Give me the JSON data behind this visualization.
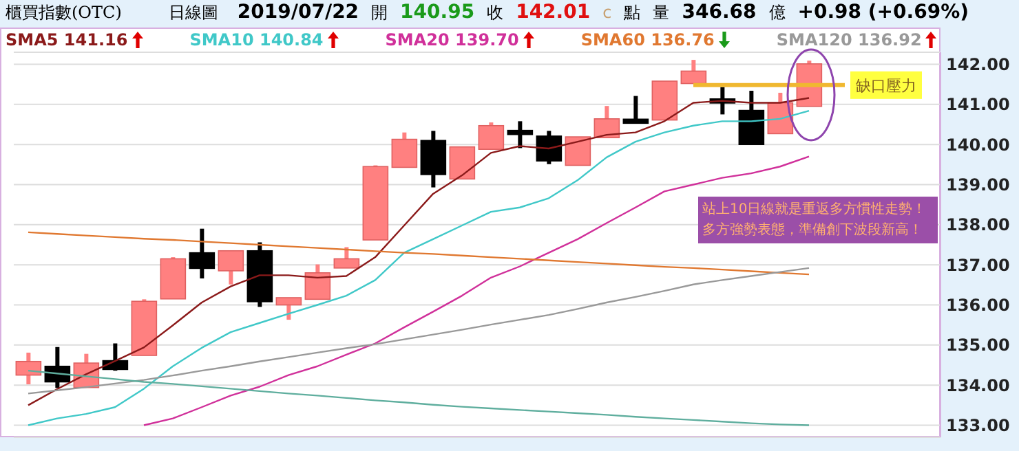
{
  "chart_data": {
    "type": "candlestick",
    "title": "櫃買指數(OTC)",
    "subtitle": "日線圖",
    "annotations": [
      "2019/07/22",
      "開",
      "140.95",
      "收",
      "142.01",
      "c",
      "點",
      "量",
      "346.68",
      "億",
      "+0.98 (+0.69%)",
      "站上10日線就是重返多方慣性走勢！",
      "多方強勢表態，準備創下波段新高！"
    ],
    "categories": [
      null,
      null,
      null,
      null,
      null,
      null,
      null,
      null,
      null,
      null,
      null,
      null,
      null,
      null,
      null,
      null,
      null,
      null,
      null,
      null,
      null,
      null,
      null,
      null,
      null,
      null,
      null,
      null
    ],
    "ohlc": [
      [
        134.25,
        134.81,
        134.02,
        134.59
      ],
      [
        134.47,
        134.95,
        133.93,
        134.08
      ],
      [
        133.94,
        134.78,
        133.94,
        134.55
      ],
      [
        134.61,
        135.04,
        134.36,
        134.39
      ],
      [
        134.74,
        136.14,
        134.74,
        136.09
      ],
      [
        136.15,
        137.19,
        136.15,
        137.15
      ],
      [
        137.3,
        137.9,
        136.66,
        136.91
      ],
      [
        136.85,
        137.35,
        136.51,
        137.35
      ],
      [
        137.35,
        137.56,
        135.95,
        136.08
      ],
      [
        136.0,
        136.18,
        135.63,
        136.18
      ],
      [
        136.14,
        137.01,
        136.14,
        136.8
      ],
      [
        136.92,
        137.44,
        136.92,
        137.15
      ],
      [
        137.62,
        139.48,
        137.62,
        139.45
      ],
      [
        139.43,
        140.3,
        139.43,
        140.13
      ],
      [
        140.1,
        140.34,
        138.93,
        139.25
      ],
      [
        139.14,
        139.94,
        139.14,
        139.94
      ],
      [
        139.88,
        140.55,
        139.88,
        140.47
      ],
      [
        140.32,
        140.58,
        139.91,
        140.28
      ],
      [
        140.21,
        140.34,
        139.51,
        139.59
      ],
      [
        139.48,
        140.19,
        139.48,
        140.19
      ],
      [
        140.17,
        140.96,
        140.17,
        140.64
      ],
      [
        140.6,
        141.21,
        140.53,
        140.56
      ],
      [
        140.61,
        141.58,
        140.61,
        141.58
      ],
      [
        141.52,
        142.11,
        141.52,
        141.83
      ],
      [
        141.12,
        141.43,
        140.75,
        141.05
      ],
      [
        140.85,
        141.34,
        140.0,
        140.0
      ],
      [
        140.27,
        141.29,
        140.27,
        141.04
      ],
      [
        140.95,
        142.09,
        140.95,
        142.01
      ]
    ],
    "colors": [
      "#ff8080",
      "#000000",
      "#ff8080",
      "#000000",
      "#ff8080",
      "#ff8080",
      "#000000",
      "#ff8080",
      "#000000",
      "#ff8080",
      "#ff8080",
      "#ff8080",
      "#ff8080",
      "#ff8080",
      "#000000",
      "#ff8080",
      "#ff8080",
      "#000000",
      "#000000",
      "#ff8080",
      "#ff8080",
      "#000000",
      "#ff8080",
      "#ff8080",
      "#000000",
      "#000000",
      "#ff8080",
      "#ff8080"
    ],
    "series": [
      {
        "type": "line",
        "name": "SMA5 141.16",
        "color": "#8b1a1a",
        "values": [
          133.5,
          133.9,
          134.27,
          134.6,
          134.94,
          135.49,
          136.06,
          136.46,
          136.74,
          136.74,
          136.68,
          136.72,
          137.19,
          137.98,
          138.77,
          139.23,
          139.79,
          139.96,
          139.9,
          140.07,
          140.24,
          140.3,
          140.58,
          141.04,
          141.09,
          141.04,
          141.04,
          141.16
        ]
      },
      {
        "type": "line",
        "name": "SMA10 140.84",
        "color": "#40c8c8",
        "values": [
          133.0,
          133.17,
          133.28,
          133.45,
          133.91,
          134.47,
          134.93,
          135.32,
          135.55,
          135.78,
          136.0,
          136.23,
          136.62,
          137.3,
          137.64,
          137.98,
          138.32,
          138.43,
          138.66,
          139.11,
          139.68,
          140.07,
          140.3,
          140.47,
          140.58,
          140.58,
          140.64,
          140.84
        ]
      },
      {
        "type": "line",
        "name": "SMA20 139.70",
        "color": "#d0309a",
        "values": [
          null,
          null,
          null,
          null,
          133.0,
          133.17,
          133.45,
          133.74,
          133.96,
          134.25,
          134.47,
          134.76,
          135.04,
          135.44,
          135.83,
          136.23,
          136.68,
          136.96,
          137.3,
          137.64,
          138.04,
          138.43,
          138.83,
          139.0,
          139.17,
          139.28,
          139.45,
          139.7
        ]
      },
      {
        "type": "line",
        "name": "SMA60 136.76",
        "color": "#e07830",
        "values": [
          137.81,
          137.77,
          137.73,
          137.69,
          137.65,
          137.62,
          137.58,
          137.54,
          137.5,
          137.46,
          137.42,
          137.38,
          137.34,
          137.3,
          137.27,
          137.23,
          137.19,
          137.15,
          137.11,
          137.07,
          137.03,
          136.99,
          136.95,
          136.92,
          136.88,
          136.84,
          136.8,
          136.76
        ]
      },
      {
        "type": "line",
        "name": "SMA120 136.92",
        "color": "#999999",
        "values": [
          133.79,
          133.87,
          133.95,
          134.04,
          134.13,
          134.24,
          134.36,
          134.47,
          134.59,
          134.7,
          134.81,
          134.92,
          135.02,
          135.14,
          135.26,
          135.38,
          135.51,
          135.63,
          135.75,
          135.9,
          136.06,
          136.2,
          136.35,
          136.51,
          136.62,
          136.72,
          136.82,
          136.92
        ]
      },
      {
        "type": "line",
        "color": "#5fae9e",
        "values": [
          134.36,
          134.29,
          134.22,
          134.15,
          134.08,
          134.03,
          133.97,
          133.91,
          133.85,
          133.79,
          133.74,
          133.68,
          133.62,
          133.57,
          133.51,
          133.46,
          133.42,
          133.38,
          133.34,
          133.3,
          133.26,
          133.21,
          133.17,
          133.13,
          133.09,
          133.05,
          133.02,
          133.0
        ]
      }
    ],
    "ylim": [
      132.7,
      142.3
    ],
    "yticks": [
      {
        "value": 133,
        "label": "133.00"
      },
      {
        "value": 134,
        "label": "134.00"
      },
      {
        "value": 135,
        "label": "135.00"
      },
      {
        "value": 136,
        "label": "136.00"
      },
      {
        "value": 137,
        "label": "137.00"
      },
      {
        "value": 138,
        "label": "138.00"
      },
      {
        "value": 139,
        "label": "139.00"
      },
      {
        "value": 140,
        "label": "140.00"
      },
      {
        "value": 141,
        "label": "141.00"
      },
      {
        "value": 142,
        "label": "142.00"
      }
    ],
    "ref_lines": [
      {
        "axis": "y",
        "value": 141.48,
        "label": "缺口壓力",
        "color": "#f0b830"
      }
    ],
    "grid": "y",
    "legend": "top",
    "marker": "none"
  }
}
